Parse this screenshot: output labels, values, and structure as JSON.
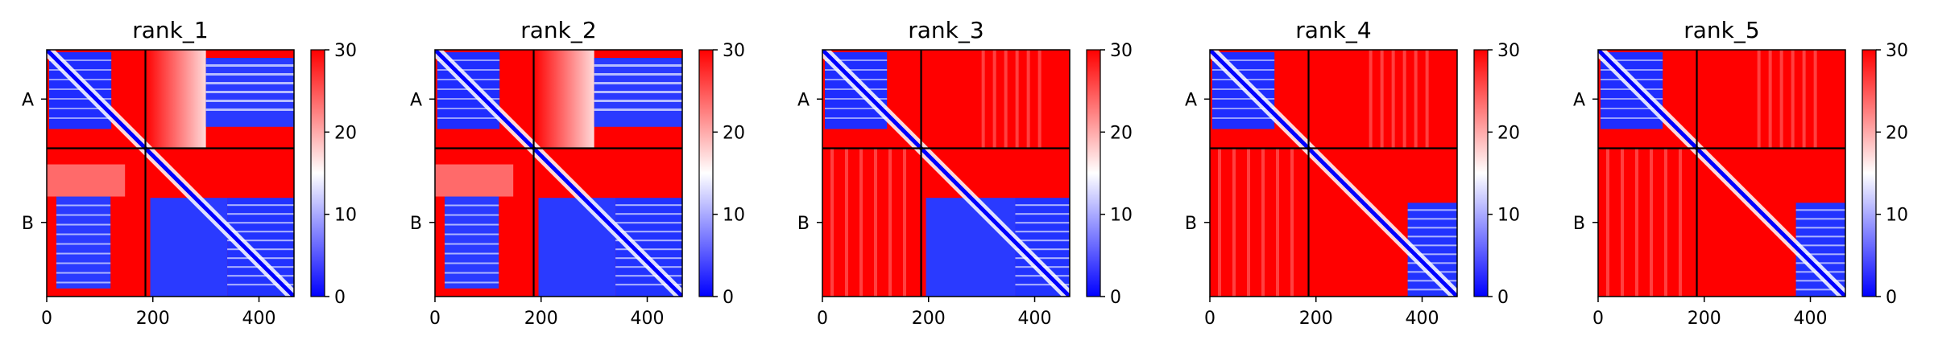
{
  "chart_data": [
    {
      "type": "heatmap",
      "title": "rank_1",
      "xlim": [
        0,
        466
      ],
      "xticks": [
        "0",
        "200",
        "400"
      ],
      "yticklabels": [
        "A",
        "B"
      ],
      "chain_boundary": 186,
      "colorbar": {
        "min": 0,
        "max": 30,
        "ticks": [
          "0",
          "10",
          "20",
          "30"
        ],
        "colors": [
          "#0000ff",
          "#ffffff",
          "#ff0000"
        ]
      },
      "pattern": {
        "A_AB": "blue",
        "B_diag_start": 0.55,
        "B_band_start": 0.73,
        "B_solid": false
      }
    },
    {
      "type": "heatmap",
      "title": "rank_2",
      "xlim": [
        0,
        466
      ],
      "xticks": [
        "0",
        "200",
        "400"
      ],
      "yticklabels": [
        "A",
        "B"
      ],
      "chain_boundary": 186,
      "colorbar": {
        "min": 0,
        "max": 30,
        "ticks": [
          "0",
          "10",
          "20",
          "30"
        ],
        "colors": [
          "#0000ff",
          "#ffffff",
          "#ff0000"
        ]
      },
      "pattern": {
        "A_AB": "blue",
        "B_diag_start": 0.55,
        "B_band_start": 0.73,
        "B_solid": false
      }
    },
    {
      "type": "heatmap",
      "title": "rank_3",
      "xlim": [
        0,
        466
      ],
      "xticks": [
        "0",
        "200",
        "400"
      ],
      "yticklabels": [
        "A",
        "B"
      ],
      "chain_boundary": 186,
      "colorbar": {
        "min": 0,
        "max": 30,
        "ticks": [
          "0",
          "10",
          "20",
          "30"
        ],
        "colors": [
          "#0000ff",
          "#ffffff",
          "#ff0000"
        ]
      },
      "pattern": {
        "A_AB": "red",
        "B_diag_start": 0.55,
        "B_band_start": 0.78,
        "B_solid": false
      }
    },
    {
      "type": "heatmap",
      "title": "rank_4",
      "xlim": [
        0,
        466
      ],
      "xticks": [
        "0",
        "200",
        "400"
      ],
      "yticklabels": [
        "A",
        "B"
      ],
      "chain_boundary": 186,
      "colorbar": {
        "min": 0,
        "max": 30,
        "ticks": [
          "0",
          "10",
          "20",
          "30"
        ],
        "colors": [
          "#0000ff",
          "#ffffff",
          "#ff0000"
        ]
      },
      "pattern": {
        "A_AB": "red",
        "B_diag_start": 0.55,
        "B_band_start": 0.8,
        "B_solid": true
      }
    },
    {
      "type": "heatmap",
      "title": "rank_5",
      "xlim": [
        0,
        466
      ],
      "xticks": [
        "0",
        "200",
        "400"
      ],
      "yticklabels": [
        "A",
        "B"
      ],
      "chain_boundary": 186,
      "colorbar": {
        "min": 0,
        "max": 30,
        "ticks": [
          "0",
          "10",
          "20",
          "30"
        ],
        "colors": [
          "#0000ff",
          "#ffffff",
          "#ff0000"
        ]
      },
      "pattern": {
        "A_AB": "red",
        "B_diag_start": 0.55,
        "B_band_start": 0.8,
        "B_solid": true
      }
    }
  ]
}
